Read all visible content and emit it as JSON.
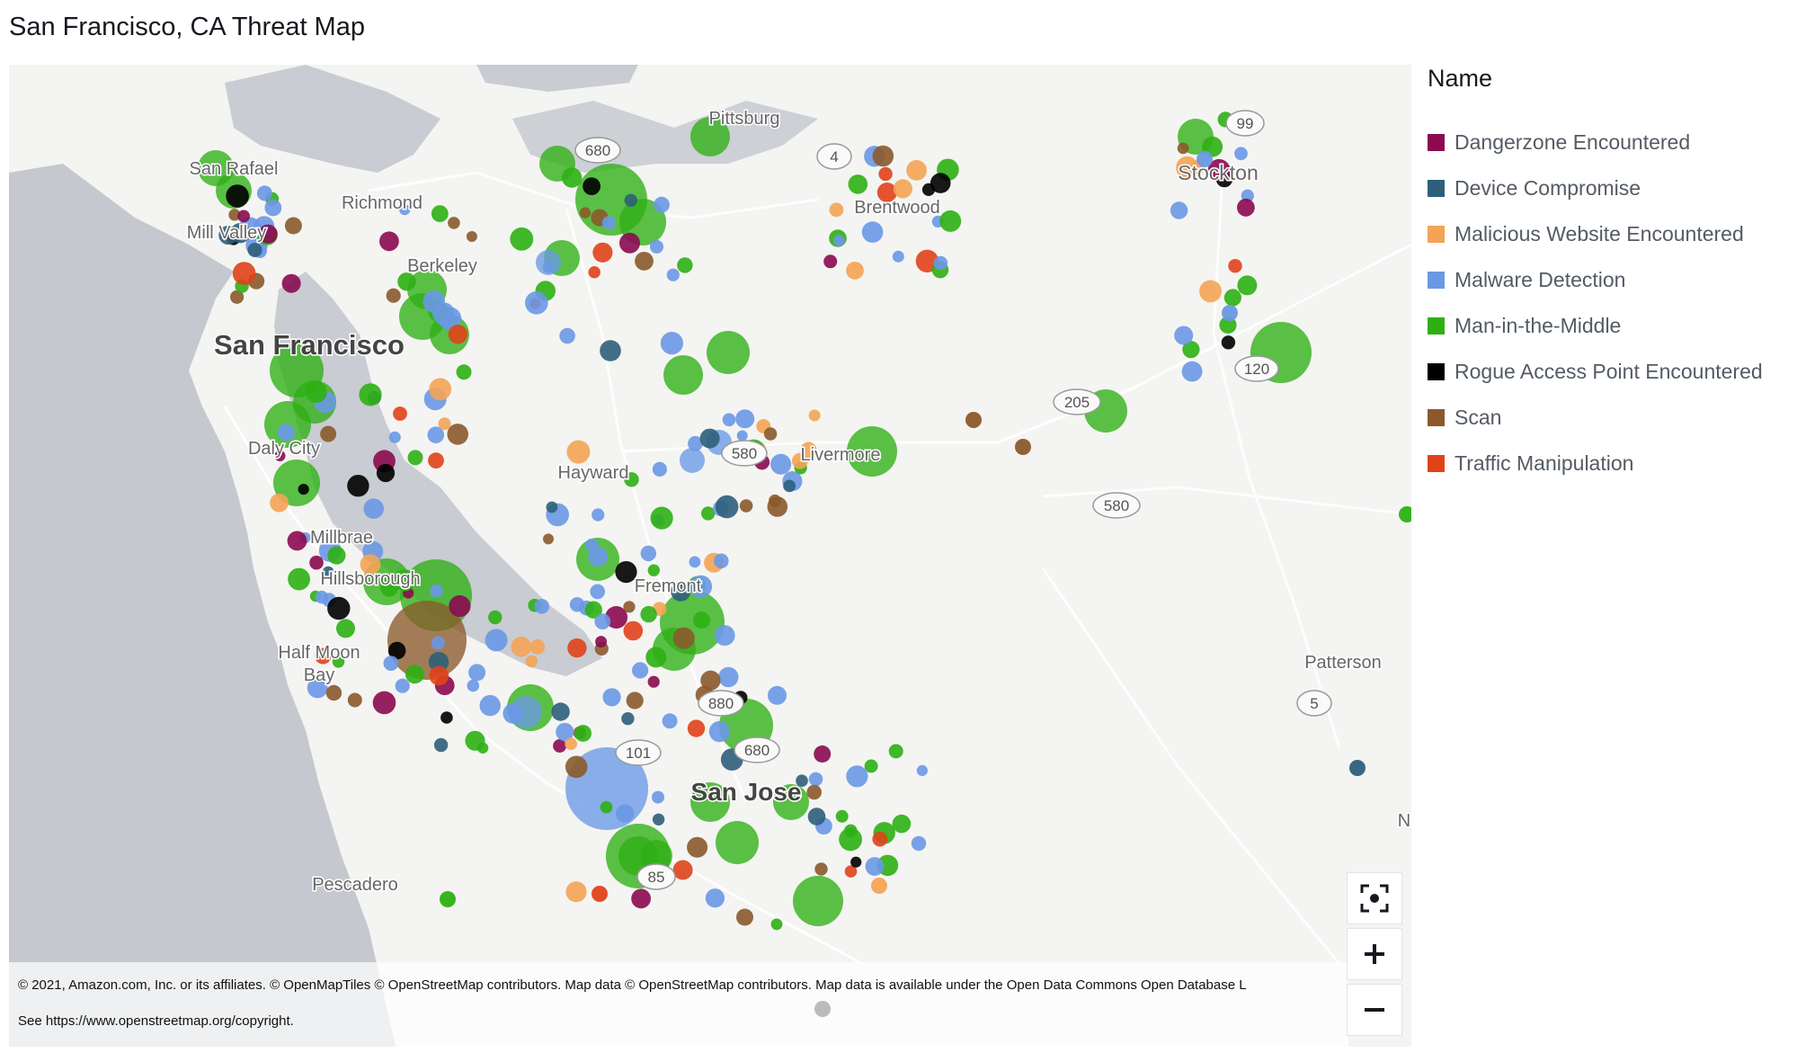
{
  "title": "San Francisco, CA Threat Map",
  "legend": {
    "title": "Name",
    "items": [
      {
        "label": "Dangerzone Encountered",
        "color": "#8b0a50"
      },
      {
        "label": "Device Compromise",
        "color": "#2e5f7a"
      },
      {
        "label": "Malicious Website Encountered",
        "color": "#f4a455"
      },
      {
        "label": "Malware Detection",
        "color": "#6a98e5"
      },
      {
        "label": "Man-in-the-Middle",
        "color": "#2eb014"
      },
      {
        "label": "Rogue Access Point Encountered",
        "color": "#000000"
      },
      {
        "label": "Scan",
        "color": "#8b5a2b"
      },
      {
        "label": "Traffic Manipulation",
        "color": "#e0431a"
      }
    ]
  },
  "map_labels": {
    "pittsburg": "Pittsburg",
    "stockton": "Stockton",
    "san_rafael": "San Rafael",
    "richmond": "Richmond",
    "mill_valley": "Mill Valley",
    "brentwood": "Brentwood",
    "berkeley": "Berkeley",
    "san_francisco": "San Francisco",
    "daly_city": "Daly City",
    "hayward": "Hayward",
    "livermore": "Livermore",
    "millbrae": "Millbrae",
    "hillsborough": "Hillsborough",
    "fremont": "Fremont",
    "half_moon": "Half Moon",
    "bay": "Bay",
    "patterson": "Patterson",
    "san_jose": "San Jose",
    "pescadero": "Pescadero",
    "n_edge": "N"
  },
  "road_shields": {
    "r680a": "680",
    "r4": "4",
    "r99": "99",
    "r120": "120",
    "r205": "205",
    "r580a": "580",
    "r580b": "580",
    "r880": "880",
    "r101": "101",
    "r680b": "680",
    "r85": "85",
    "r5": "5"
  },
  "attribution": {
    "line1": "© 2021, Amazon.com, Inc. or its affiliates. © OpenMapTiles © OpenStreetMap contributors. Map data © OpenStreetMap contributors. Map data is available under the Open Data Commons Open Database L",
    "line2": "See https://www.openstreetmap.org/copyright."
  },
  "controls": {
    "locate_icon": "locate-icon",
    "zoom_in_icon": "plus-icon",
    "zoom_out_icon": "minus-icon"
  },
  "threat_markers": [
    {
      "type": "Man-in-the-Middle",
      "size": "large"
    },
    {
      "type": "Malware Detection",
      "size": "large"
    },
    {
      "type": "Scan",
      "size": "large"
    },
    {
      "type": "Dangerzone Encountered",
      "size": "small"
    },
    {
      "type": "Device Compromise",
      "size": "small"
    },
    {
      "type": "Malicious Website Encountered",
      "size": "small"
    },
    {
      "type": "Rogue Access Point Encountered",
      "size": "small"
    },
    {
      "type": "Traffic Manipulation",
      "size": "small"
    }
  ]
}
